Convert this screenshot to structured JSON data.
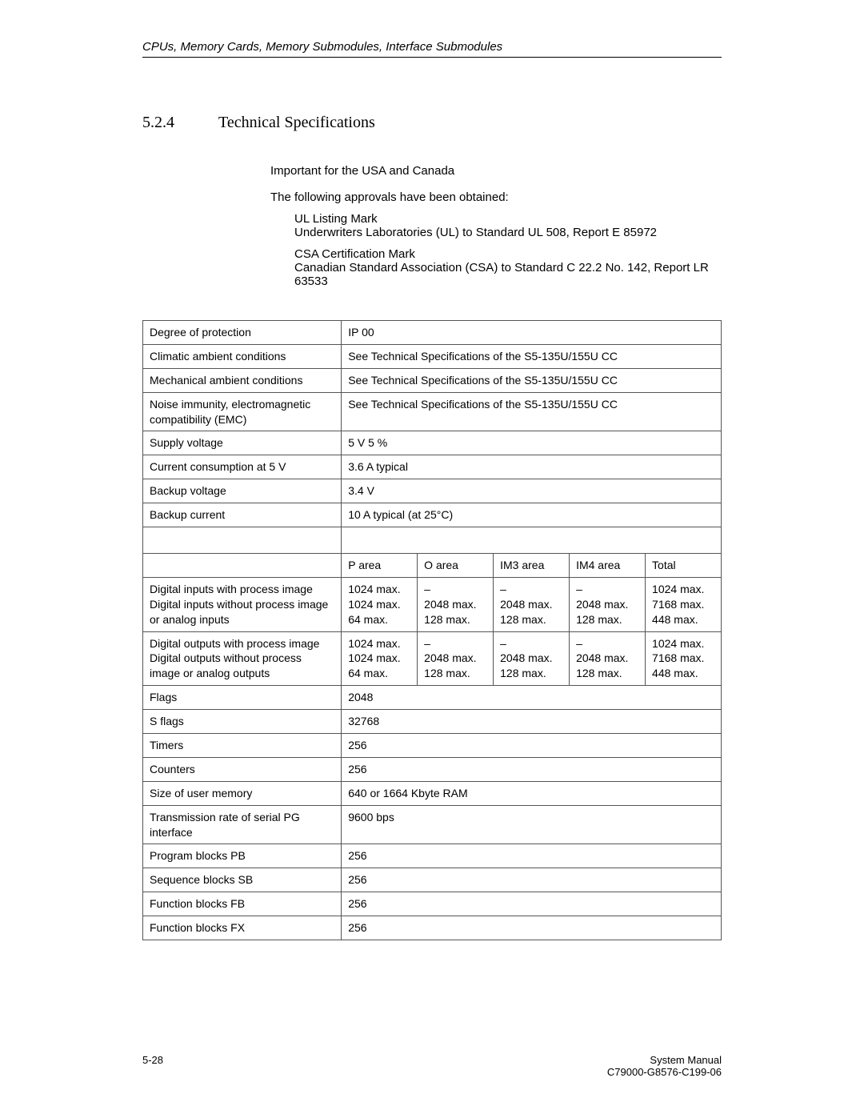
{
  "header": {
    "running_title": "CPUs, Memory Cards, Memory Submodules, Interface Submodules"
  },
  "section": {
    "number": "5.2.4",
    "title": "Technical Specifications"
  },
  "intro": {
    "p1": "Important for the USA and Canada",
    "p2": "The following approvals have been obtained:",
    "ul_title": "UL Listing Mark",
    "ul_detail": "Underwriters Laboratories (UL) to Standard UL 508, Report E 85972",
    "csa_title": "CSA Certification Mark",
    "csa_detail": "Canadian Standard Association (CSA) to Standard C 22.2 No. 142, Report LR 63533"
  },
  "rows_top": [
    {
      "label": "Degree of protection",
      "value": "IP  00"
    },
    {
      "label": "Climatic ambient conditions",
      "value": "See Technical Specifications of the S5-135U/155U CC"
    },
    {
      "label": "Mechanical ambient conditions",
      "value": "See Technical Specifications of the S5-135U/155U CC"
    },
    {
      "label": "Noise immunity, electromagnetic compatibility (EMC)",
      "value": "See Technical Specifications of the S5-135U/155U CC"
    },
    {
      "label": "Supply voltage",
      "value": "5 V    5 %"
    },
    {
      "label": "Current consumption at 5 V",
      "value": "3.6 A typical"
    },
    {
      "label": "Backup voltage",
      "value": "3.4 V"
    },
    {
      "label": "Backup current",
      "value": "10  A typical (at 25°C)"
    }
  ],
  "area_headers": {
    "p": "P area",
    "o": "O area",
    "im3": "IM3 area",
    "im4": "IM4 area",
    "total": "Total"
  },
  "multi_rows": [
    {
      "label": "Digital inputs with process image\nDigital inputs without process image or analog inputs",
      "p": "1024 max.\n1024 max.\n64 max.",
      "o": "–\n2048 max.\n128 max.",
      "im3": "–\n2048 max.\n128 max.",
      "im4": "–\n2048 max.\n128 max.",
      "total": "1024 max.\n7168 max.\n448 max."
    },
    {
      "label": "Digital outputs with process image\nDigital outputs without process image or analog outputs",
      "p": "1024 max.\n1024 max.\n64 max.",
      "o": "–\n2048 max.\n128 max.",
      "im3": "–\n2048 max.\n128 max.",
      "im4": "–\n2048 max.\n128 max.",
      "total": "1024 max.\n7168 max.\n448 max."
    }
  ],
  "rows_bottom": [
    {
      "label": "Flags",
      "value": "2048"
    },
    {
      "label": "S flags",
      "value": "32768"
    },
    {
      "label": "Timers",
      "value": "256"
    },
    {
      "label": "Counters",
      "value": "256"
    },
    {
      "label": "Size of user memory",
      "value": "640 or 1664 Kbyte RAM"
    },
    {
      "label": "Transmission rate of serial PG interface",
      "value": "9600 bps"
    },
    {
      "label": "Program blocks PB",
      "value": "256"
    },
    {
      "label": "Sequence blocks SB",
      "value": "256"
    },
    {
      "label": "Function blocks FB",
      "value": "256"
    },
    {
      "label": "Function blocks FX",
      "value": "256"
    }
  ],
  "footer": {
    "left": "5-28",
    "right_line1": "System Manual",
    "right_line2": "C79000-G8576-C199-06"
  }
}
